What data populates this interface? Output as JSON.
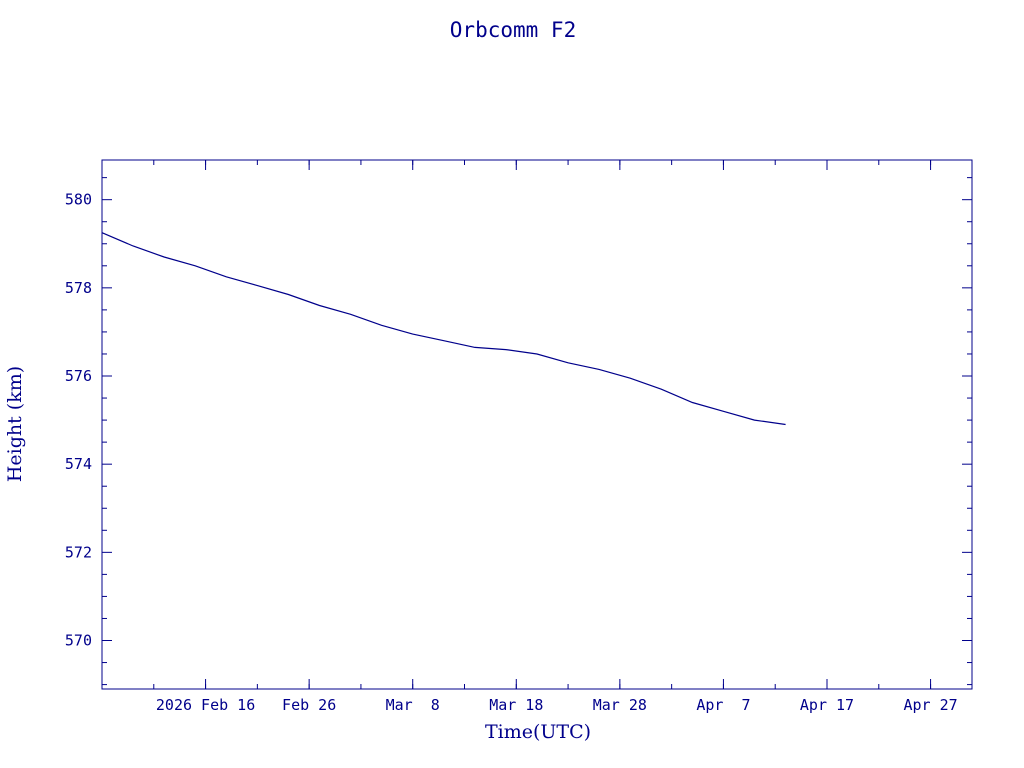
{
  "chart_data": {
    "type": "line",
    "title": "Orbcomm F2",
    "xlabel": "Time(UTC)",
    "ylabel": "Height (km)",
    "x_tick_labels": [
      "2026 Feb 16",
      "Feb 26",
      "Mar  8",
      "Mar 18",
      "Mar 28",
      "Apr  7",
      "Apr 17",
      "Apr 27"
    ],
    "x_ticks": [
      "2026-02-16",
      "2026-02-26",
      "2026-03-08",
      "2026-03-18",
      "2026-03-28",
      "2026-04-07",
      "2026-04-17",
      "2026-04-27"
    ],
    "xlim": [
      "2026-02-06",
      "2026-05-01"
    ],
    "y_ticks": [
      570,
      572,
      574,
      576,
      578,
      580
    ],
    "ylim": [
      568.9,
      580.9
    ],
    "grid": false,
    "series": [
      {
        "color": "#00008b",
        "x": [
          "2026-02-06",
          "2026-02-09",
          "2026-02-12",
          "2026-02-15",
          "2026-02-18",
          "2026-02-21",
          "2026-02-24",
          "2026-02-27",
          "2026-03-02",
          "2026-03-05",
          "2026-03-08",
          "2026-03-11",
          "2026-03-14",
          "2026-03-17",
          "2026-03-20",
          "2026-03-23",
          "2026-03-26",
          "2026-03-29",
          "2026-04-01",
          "2026-04-04",
          "2026-04-07",
          "2026-04-10",
          "2026-04-13"
        ],
        "y": [
          579.25,
          578.95,
          578.7,
          578.5,
          578.25,
          578.05,
          577.85,
          577.6,
          577.4,
          577.15,
          576.95,
          576.8,
          576.65,
          576.6,
          576.5,
          576.3,
          576.15,
          575.95,
          575.7,
          575.4,
          575.2,
          575.0,
          574.9
        ]
      }
    ]
  }
}
